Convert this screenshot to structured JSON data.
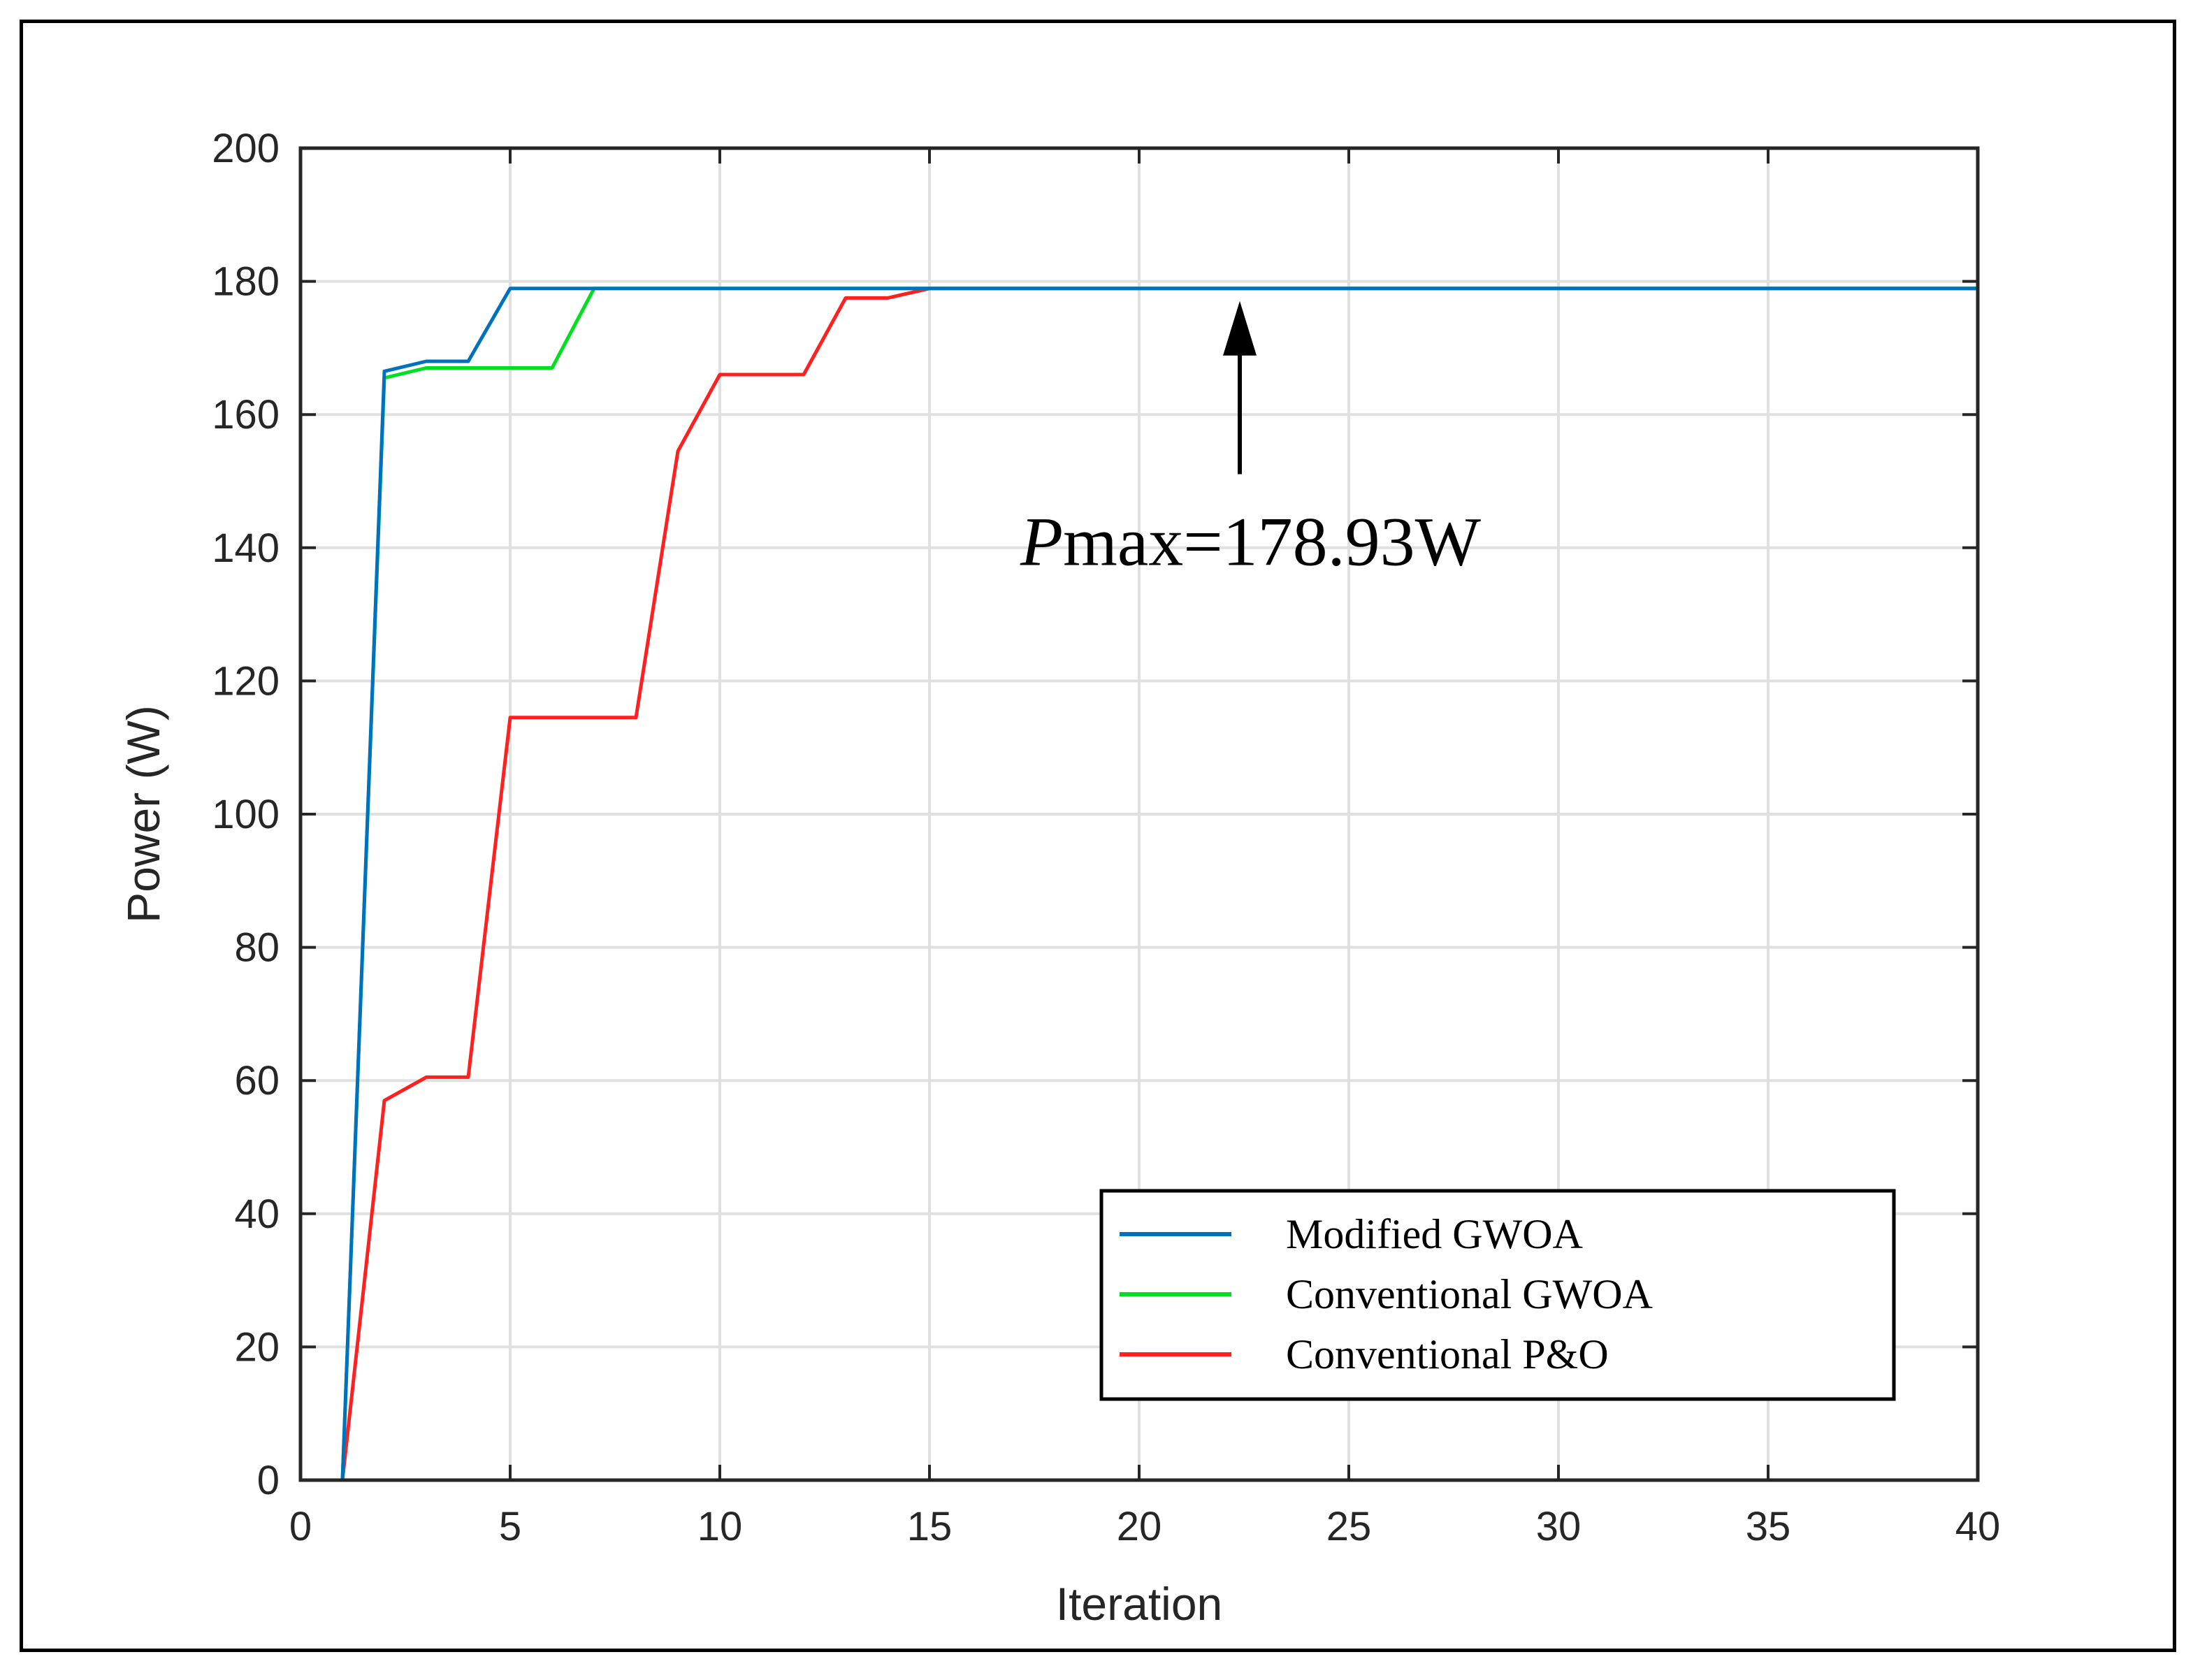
{
  "chart_data": {
    "type": "line",
    "title": "",
    "xlabel": "Iteration",
    "ylabel": "Power (W)",
    "xlim": [
      0,
      40
    ],
    "ylim": [
      0,
      200
    ],
    "xticks": [
      0,
      5,
      10,
      15,
      20,
      25,
      30,
      35,
      40
    ],
    "yticks": [
      0,
      20,
      40,
      60,
      80,
      100,
      120,
      140,
      160,
      180,
      200
    ],
    "grid": true,
    "legend_position": "bottom-right",
    "series": [
      {
        "name": "Modified GWOA",
        "color": "#0072BD",
        "x": [
          1,
          2,
          3,
          4,
          5,
          6,
          7,
          40
        ],
        "y": [
          0,
          166.5,
          168,
          168,
          178.93,
          178.93,
          178.93,
          178.93
        ]
      },
      {
        "name": "Conventional GWOA",
        "color": "#00E020",
        "x": [
          1,
          2,
          3,
          4,
          5,
          6,
          7,
          40
        ],
        "y": [
          0,
          165.5,
          167,
          167,
          167,
          167,
          178.93,
          178.93
        ]
      },
      {
        "name": "Conventional P&O",
        "color": "#FF2020",
        "x": [
          1,
          2,
          3,
          4,
          5,
          6,
          7,
          8,
          9,
          10,
          11,
          12,
          13,
          14,
          15,
          40
        ],
        "y": [
          0,
          57,
          60.5,
          60.5,
          114.5,
          114.5,
          114.5,
          114.5,
          154.5,
          166,
          166,
          166,
          177.5,
          177.5,
          178.93,
          178.93
        ]
      }
    ],
    "annotation": {
      "prefix": "P",
      "text": "max=178.93W",
      "arrow_x": 22.4,
      "arrow_y_from": 150,
      "arrow_y_to": 178.93
    }
  }
}
